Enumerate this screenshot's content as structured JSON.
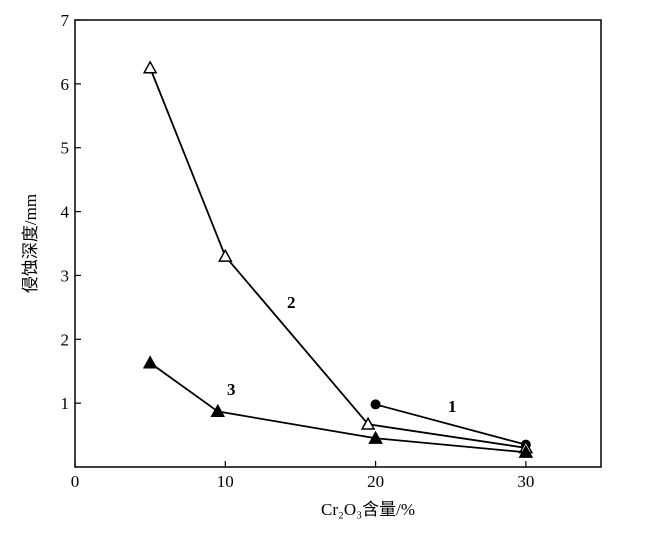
{
  "chart_data": {
    "type": "line",
    "title": "",
    "xlabel": "Cr₂O₃含量/%",
    "ylabel": "侵蚀深度/mm",
    "xlim": [
      0,
      35
    ],
    "ylim": [
      0,
      7
    ],
    "xticks": [
      0,
      10,
      20,
      30
    ],
    "yticks": [
      1,
      2,
      3,
      4,
      5,
      6,
      7
    ],
    "grid": false,
    "legend": "none",
    "series": [
      {
        "name": "1",
        "marker": "filled-circle",
        "x": [
          20,
          30
        ],
        "y": [
          0.98,
          0.35
        ]
      },
      {
        "name": "2",
        "marker": "open-triangle",
        "x": [
          5,
          10,
          19.5,
          30
        ],
        "y": [
          6.25,
          3.3,
          0.67,
          0.3
        ]
      },
      {
        "name": "3",
        "marker": "filled-triangle",
        "x": [
          5,
          9.5,
          20,
          30
        ],
        "y": [
          1.63,
          0.87,
          0.45,
          0.23
        ]
      }
    ]
  }
}
